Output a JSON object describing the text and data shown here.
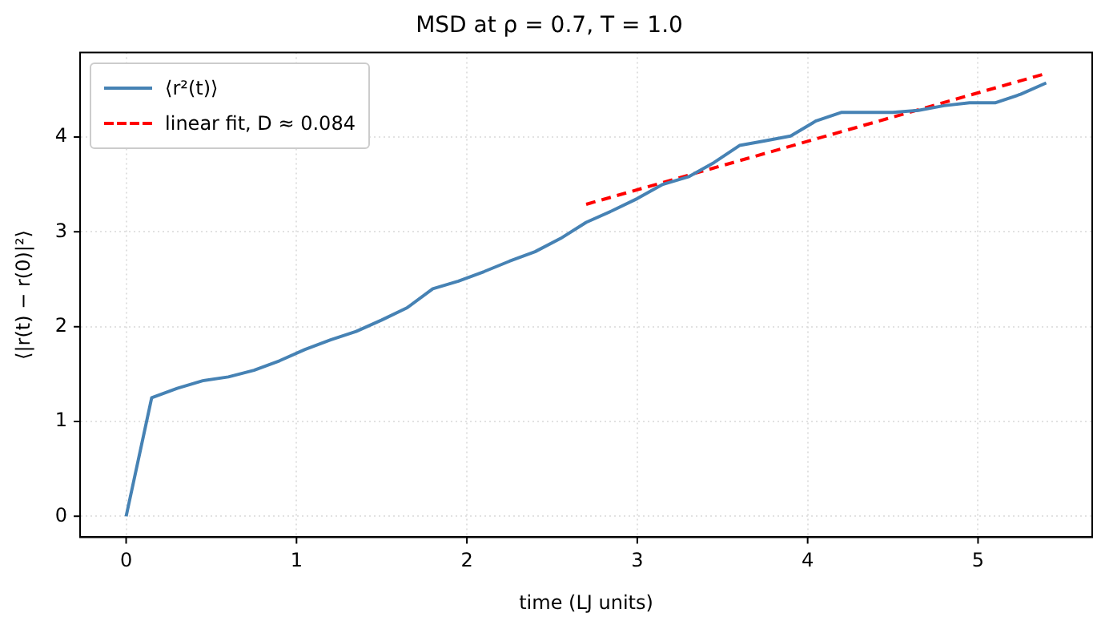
{
  "chart_data": {
    "type": "line",
    "title": "MSD at ρ = 0.7, T = 1.0",
    "xlabel": "time (LJ units)",
    "ylabel": "⟨|r(t) − r(0)|²⟩",
    "x": [
      0,
      0.15,
      0.3,
      0.45,
      0.6,
      0.75,
      0.9,
      1.05,
      1.2,
      1.35,
      1.5,
      1.65,
      1.8,
      1.95,
      2.1,
      2.25,
      2.4,
      2.55,
      2.7,
      2.85,
      3.0,
      3.15,
      3.3,
      3.45,
      3.6,
      3.75,
      3.9,
      4.05,
      4.2,
      4.35,
      4.5,
      4.65,
      4.8,
      4.95,
      5.1,
      5.25,
      5.4
    ],
    "series": [
      {
        "name": "⟨r²(t)⟩",
        "color": "#4682b4",
        "values": [
          0,
          1.25,
          1.35,
          1.43,
          1.47,
          1.54,
          1.64,
          1.76,
          1.86,
          1.95,
          2.07,
          2.2,
          2.4,
          2.48,
          2.58,
          2.69,
          2.79,
          2.93,
          3.1,
          3.22,
          3.35,
          3.5,
          3.58,
          3.73,
          3.91,
          3.96,
          4.01,
          4.17,
          4.26,
          4.26,
          4.26,
          4.28,
          4.33,
          4.36,
          4.36,
          4.45,
          4.57
        ]
      },
      {
        "name": "linear fit, D ≈ 0.084",
        "color": "#ff0000",
        "line_style": "dashed",
        "x": [
          2.7,
          5.4
        ],
        "values": [
          3.29,
          4.67
        ]
      }
    ],
    "xlim": [
      -0.27,
      5.67
    ],
    "xticks": [
      0,
      1,
      2,
      3,
      4,
      5
    ],
    "ylim": [
      -0.22,
      4.89
    ],
    "yticks": [
      0,
      1,
      2,
      3,
      4
    ],
    "grid": true,
    "legend": "top left",
    "marker": "none"
  }
}
